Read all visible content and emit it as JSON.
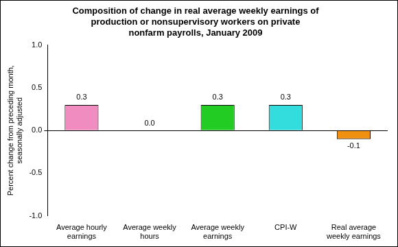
{
  "chart_data": {
    "type": "bar",
    "title": [
      "Composition of change in real average weekly earnings of",
      "production or nonsupervisory workers on private",
      "nonfarm payrolls, January 2009"
    ],
    "y_label": [
      "Percent change from preceding month,",
      "seasonally adjusted"
    ],
    "categories": [
      "Average hourly earnings",
      "Average weekly hours",
      "Average weekly earnings",
      "CPI-W",
      "Real average weekly earnings"
    ],
    "values": [
      0.3,
      0.0,
      0.3,
      0.3,
      -0.1
    ],
    "value_labels": [
      "0.3",
      "0.0",
      "0.3",
      "0.3",
      "-0.1"
    ],
    "colors": [
      "#f08cc0",
      "#b0b0b0",
      "#22cc22",
      "#33dddd",
      "#f09010"
    ],
    "ylim": [
      -1,
      1
    ],
    "yticks": [
      {
        "value": -1,
        "label": "-1.0"
      },
      {
        "value": -0.5,
        "label": "-0.5"
      },
      {
        "value": 0,
        "label": "0.0"
      },
      {
        "value": 0.5,
        "label": "0.5"
      },
      {
        "value": 1,
        "label": "1.0"
      }
    ],
    "grid": false,
    "data_labels": true
  }
}
